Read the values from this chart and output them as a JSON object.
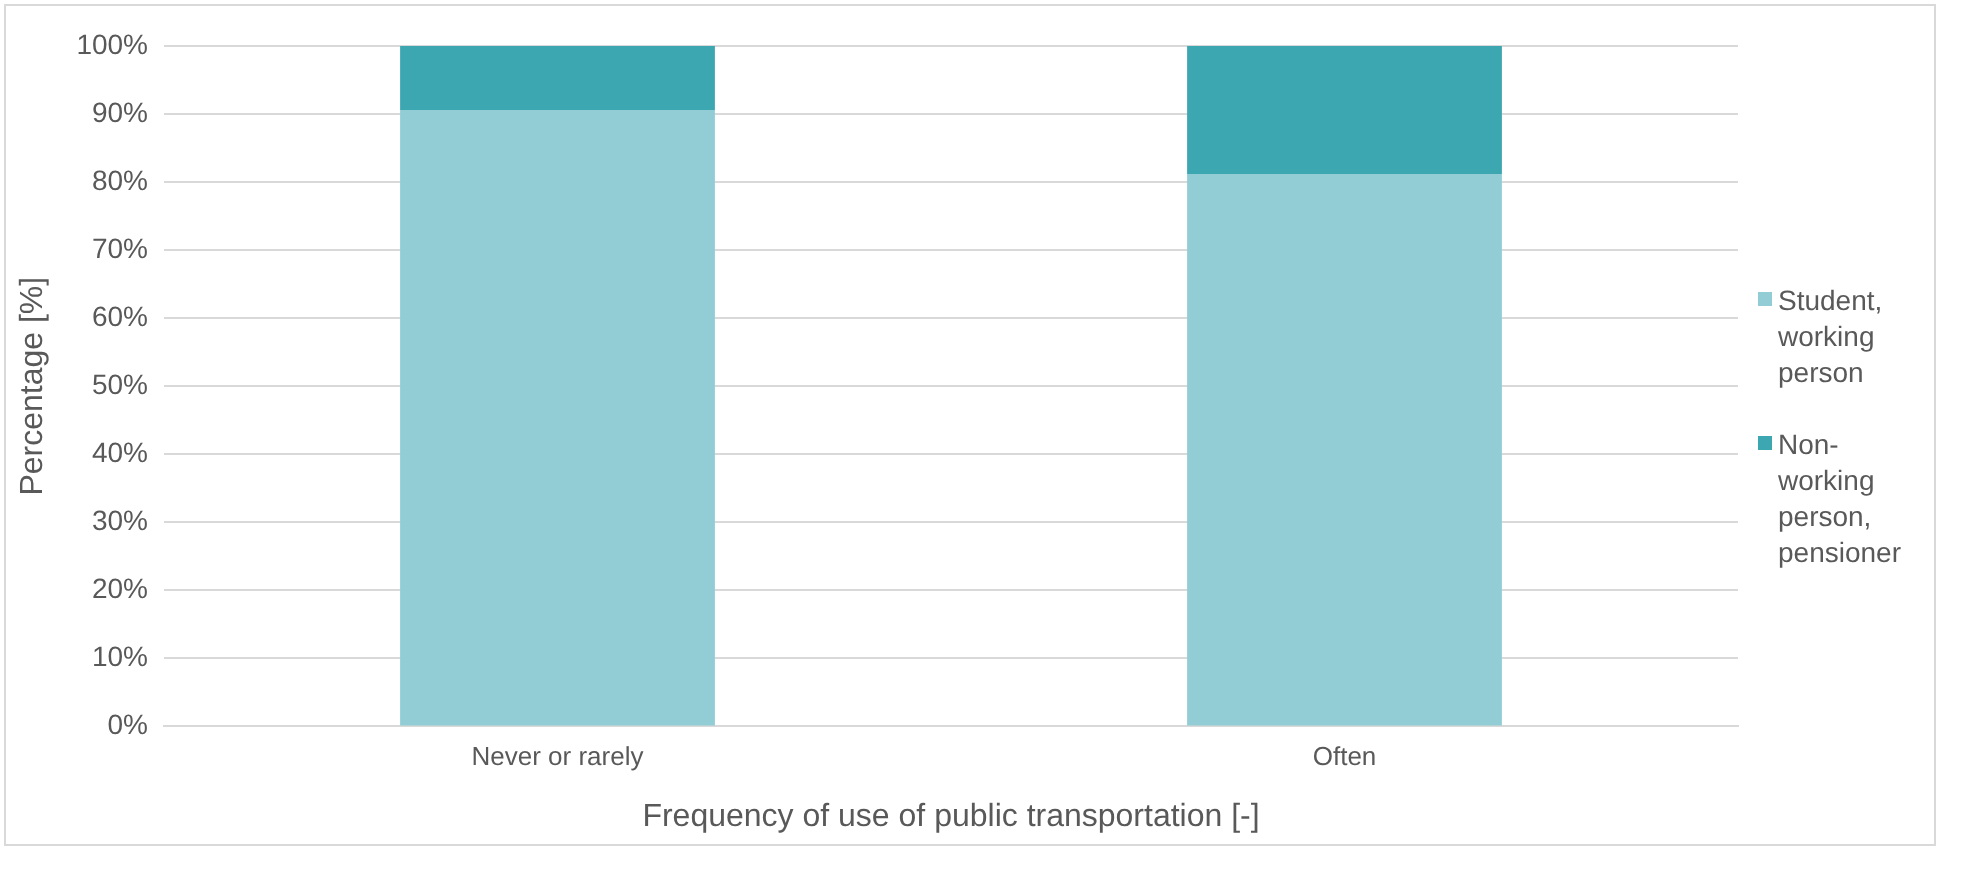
{
  "chart_data": {
    "type": "bar",
    "stacked": true,
    "xlabel": "Frequency of use of public transportation [-]",
    "ylabel": "Percentage [%]",
    "categories": [
      "Never or rarely",
      "Often"
    ],
    "series": [
      {
        "name": "Student, working person",
        "color": "#92cdd5",
        "values": [
          90.6,
          81.2
        ]
      },
      {
        "name": "Non-working person, pensioner",
        "color": "#3ca7b1",
        "values": [
          9.4,
          18.8
        ]
      }
    ],
    "ylim": [
      0,
      100
    ],
    "yticks": [
      {
        "value": 0,
        "label": "0%"
      },
      {
        "value": 10,
        "label": "10%"
      },
      {
        "value": 20,
        "label": "20%"
      },
      {
        "value": 30,
        "label": "30%"
      },
      {
        "value": 40,
        "label": "40%"
      },
      {
        "value": 50,
        "label": "50%"
      },
      {
        "value": 60,
        "label": "60%"
      },
      {
        "value": 70,
        "label": "70%"
      },
      {
        "value": 80,
        "label": "80%"
      },
      {
        "value": 90,
        "label": "90%"
      },
      {
        "value": 100,
        "label": "100%"
      }
    ],
    "grid": "y",
    "legend": "right"
  }
}
